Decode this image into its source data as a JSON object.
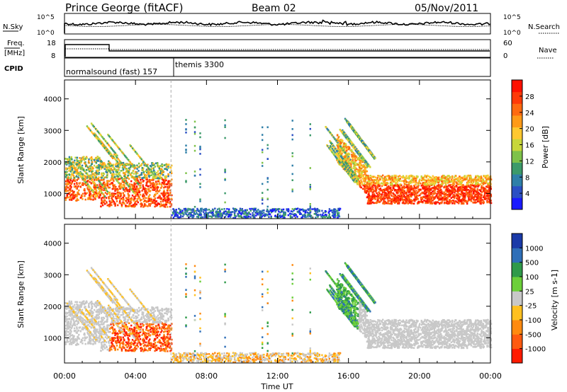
{
  "header": {
    "station": "Prince George (fitACF)",
    "beam": "Beam 02",
    "date": "05/Nov/2011"
  },
  "top_panels": {
    "nsky_label": "N.Sky",
    "nsky_ticks": [
      "10^5",
      "10^0"
    ],
    "nsearch_label": "N.Search",
    "nsearch_ticks": [
      "10^5",
      "10^0"
    ],
    "freq_label": "Freq.",
    "freq_unit": "[MHz]",
    "freq_ticks": [
      "18",
      "8"
    ],
    "nave_label": "Nave",
    "nave_ticks": [
      "60",
      "0"
    ],
    "cpid_label": "CPID",
    "cpid_entries": [
      {
        "text": "normalsound (fast) 157",
        "start_hour": 0
      },
      {
        "text": "themis 3300",
        "start_hour": 6.3
      }
    ]
  },
  "chart_data": [
    {
      "type": "heatmap",
      "name": "power-panel",
      "ylabel": "Slant Range [km]",
      "xlabel": "",
      "ylim": [
        200,
        4600
      ],
      "yticks": [
        "1000",
        "2000",
        "3000",
        "4000"
      ],
      "xlim": [
        0,
        24
      ],
      "colorbar": {
        "label": "Power [dB]",
        "ticks": [
          "4",
          "8",
          "12",
          "16",
          "20",
          "24",
          "28"
        ],
        "colors": [
          "#1a1aff",
          "#2b4fc4",
          "#2f7fa8",
          "#3c9a6a",
          "#7ec24a",
          "#c8d63a",
          "#ffc830",
          "#ff9a18",
          "#ff6a10",
          "#ff3a08",
          "#ff1000"
        ]
      }
    },
    {
      "type": "heatmap",
      "name": "velocity-panel",
      "ylabel": "Slant Range [km]",
      "xlabel": "Time UT",
      "ylim": [
        200,
        4600
      ],
      "yticks": [
        "1000",
        "2000",
        "3000",
        "4000"
      ],
      "xlim": [
        0,
        24
      ],
      "xticks": [
        "00:00",
        "04:00",
        "08:00",
        "12:00",
        "16:00",
        "20:00",
        "00:00"
      ],
      "colorbar": {
        "label": "Velocity [m s-1]",
        "ticks": [
          "1000",
          "500",
          "100",
          "25",
          "-25",
          "-100",
          "-500",
          "-1000"
        ],
        "colors": [
          "#1a3aa8",
          "#2f6fb8",
          "#2f9a4a",
          "#6ccf3a",
          "#c8c8c8",
          "#ffc020",
          "#ff8a10",
          "#ff5a10",
          "#ff1a00"
        ]
      }
    }
  ],
  "marker_line_hour": 6
}
